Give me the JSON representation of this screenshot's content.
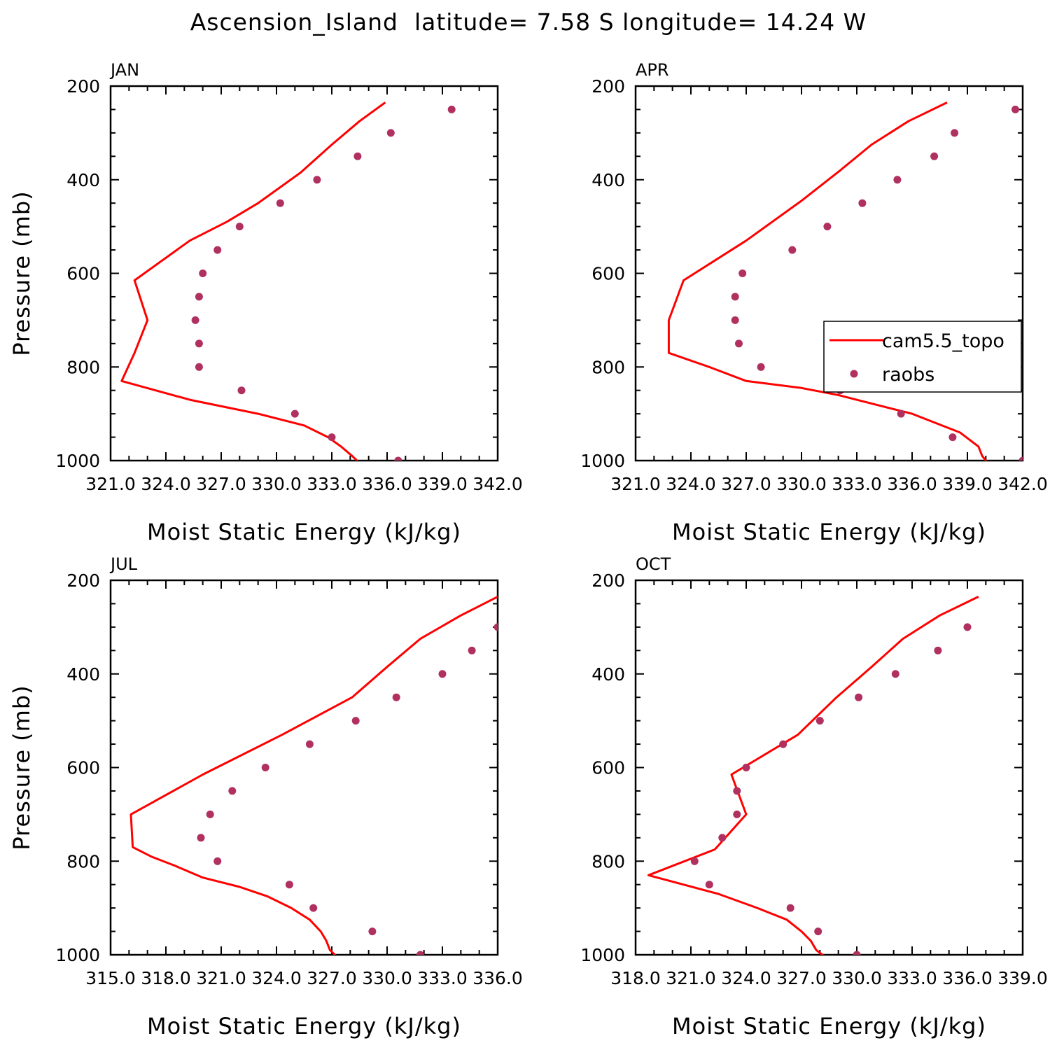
{
  "title": "Ascension_Island  latitude= 7.58 S longitude= 14.24 W",
  "colors": {
    "model": "#ff0000",
    "obs": "#b03060"
  },
  "legend": {
    "model_label": "cam5.5_topo",
    "obs_label": "raobs",
    "placement": "right-middle of APR panel"
  },
  "chart_data": [
    {
      "type": "line",
      "panel": "JAN",
      "xlabel": "Moist Static Energy (kJ/kg)",
      "ylabel": "Pressure (mb)",
      "xlim": [
        321.0,
        342.0
      ],
      "xticks": [
        "321.0",
        "324.0",
        "327.0",
        "330.0",
        "333.0",
        "336.0",
        "339.0",
        "342.0"
      ],
      "ylim": [
        1000,
        200
      ],
      "yticks": [
        "200",
        "400",
        "600",
        "800",
        "1000"
      ],
      "series": [
        {
          "name": "cam5.5_topo",
          "kind": "line",
          "points": [
            [
              335.9,
              235
            ],
            [
              334.5,
              275
            ],
            [
              333.0,
              325
            ],
            [
              331.3,
              385
            ],
            [
              329.0,
              450
            ],
            [
              327.3,
              490
            ],
            [
              325.3,
              530
            ],
            [
              322.3,
              615
            ],
            [
              323.0,
              700
            ],
            [
              322.3,
              770
            ],
            [
              321.6,
              830
            ],
            [
              325.3,
              870
            ],
            [
              329.0,
              900
            ],
            [
              331.5,
              925
            ],
            [
              332.8,
              950
            ],
            [
              333.5,
              970
            ],
            [
              334.1,
              990
            ],
            [
              334.5,
              1005
            ]
          ]
        },
        {
          "name": "raobs",
          "kind": "scatter",
          "points": [
            [
              339.5,
              250
            ],
            [
              336.2,
              300
            ],
            [
              334.4,
              350
            ],
            [
              332.2,
              400
            ],
            [
              330.2,
              450
            ],
            [
              328.0,
              500
            ],
            [
              326.8,
              550
            ],
            [
              326.0,
              600
            ],
            [
              325.8,
              650
            ],
            [
              325.6,
              700
            ],
            [
              325.8,
              750
            ],
            [
              325.8,
              800
            ],
            [
              328.1,
              850
            ],
            [
              331.0,
              900
            ],
            [
              333.0,
              950
            ],
            [
              336.6,
              1000
            ]
          ]
        }
      ]
    },
    {
      "type": "line",
      "panel": "APR",
      "xlabel": "Moist Static Energy (kJ/kg)",
      "ylabel": "",
      "xlim": [
        321.0,
        342.0
      ],
      "xticks": [
        "321.0",
        "324.0",
        "327.0",
        "330.0",
        "333.0",
        "336.0",
        "339.0",
        "342.0"
      ],
      "ylim": [
        1000,
        200
      ],
      "yticks": [
        "200",
        "400",
        "600",
        "800",
        "1000"
      ],
      "series": [
        {
          "name": "cam5.5_topo",
          "kind": "line",
          "points": [
            [
              337.9,
              235
            ],
            [
              335.8,
              275
            ],
            [
              333.8,
              325
            ],
            [
              332.1,
              380
            ],
            [
              330.0,
              445
            ],
            [
              327.0,
              530
            ],
            [
              323.6,
              615
            ],
            [
              322.8,
              700
            ],
            [
              322.8,
              770
            ],
            [
              325.0,
              800
            ],
            [
              327.0,
              830
            ],
            [
              330.0,
              845
            ],
            [
              332.0,
              860
            ],
            [
              334.0,
              880
            ],
            [
              336.0,
              900
            ],
            [
              337.3,
              920
            ],
            [
              338.6,
              940
            ],
            [
              339.6,
              970
            ],
            [
              339.8,
              990
            ],
            [
              340.1,
              1005
            ]
          ]
        },
        {
          "name": "raobs",
          "kind": "scatter",
          "points": [
            [
              341.6,
              250
            ],
            [
              338.3,
              300
            ],
            [
              337.2,
              350
            ],
            [
              335.2,
              400
            ],
            [
              333.3,
              450
            ],
            [
              331.4,
              500
            ],
            [
              329.5,
              550
            ],
            [
              326.8,
              600
            ],
            [
              326.4,
              650
            ],
            [
              326.4,
              700
            ],
            [
              326.6,
              750
            ],
            [
              327.8,
              800
            ],
            [
              332.1,
              850
            ],
            [
              335.4,
              900
            ],
            [
              338.2,
              950
            ],
            [
              342.0,
              1000
            ]
          ]
        }
      ]
    },
    {
      "type": "line",
      "panel": "JUL",
      "xlabel": "Moist Static Energy (kJ/kg)",
      "ylabel": "Pressure (mb)",
      "xlim": [
        315.0,
        336.0
      ],
      "xticks": [
        "315.0",
        "318.0",
        "321.0",
        "324.0",
        "327.0",
        "330.0",
        "333.0",
        "336.0"
      ],
      "ylim": [
        1000,
        200
      ],
      "yticks": [
        "200",
        "400",
        "600",
        "800",
        "1000"
      ],
      "series": [
        {
          "name": "cam5.5_topo",
          "kind": "line",
          "points": [
            [
              336.0,
              235
            ],
            [
              334.0,
              275
            ],
            [
              331.8,
              325
            ],
            [
              330.0,
              385
            ],
            [
              328.1,
              450
            ],
            [
              324.3,
              530
            ],
            [
              320.0,
              615
            ],
            [
              316.1,
              700
            ],
            [
              316.2,
              770
            ],
            [
              317.2,
              790
            ],
            [
              318.5,
              810
            ],
            [
              320.0,
              835
            ],
            [
              322.0,
              855
            ],
            [
              323.5,
              875
            ],
            [
              324.8,
              900
            ],
            [
              325.8,
              925
            ],
            [
              326.4,
              950
            ],
            [
              326.7,
              970
            ],
            [
              326.9,
              990
            ],
            [
              327.3,
              1005
            ]
          ]
        },
        {
          "name": "raobs",
          "kind": "scatter",
          "points": [
            [
              336.0,
              300
            ],
            [
              334.6,
              350
            ],
            [
              333.0,
              400
            ],
            [
              330.5,
              450
            ],
            [
              328.3,
              500
            ],
            [
              325.8,
              550
            ],
            [
              323.4,
              600
            ],
            [
              321.6,
              650
            ],
            [
              320.4,
              700
            ],
            [
              319.9,
              750
            ],
            [
              320.8,
              800
            ],
            [
              324.7,
              850
            ],
            [
              326.0,
              900
            ],
            [
              329.2,
              950
            ],
            [
              331.8,
              1000
            ]
          ]
        }
      ]
    },
    {
      "type": "line",
      "panel": "OCT",
      "xlabel": "Moist Static Energy (kJ/kg)",
      "ylabel": "",
      "xlim": [
        318.0,
        339.0
      ],
      "xticks": [
        "318.0",
        "321.0",
        "324.0",
        "327.0",
        "330.0",
        "333.0",
        "336.0",
        "339.0"
      ],
      "ylim": [
        1000,
        200
      ],
      "yticks": [
        "200",
        "400",
        "600",
        "800",
        "1000"
      ],
      "series": [
        {
          "name": "cam5.5_topo",
          "kind": "line",
          "points": [
            [
              336.6,
              235
            ],
            [
              334.5,
              275
            ],
            [
              332.5,
              325
            ],
            [
              330.8,
              385
            ],
            [
              328.9,
              450
            ],
            [
              326.8,
              530
            ],
            [
              323.2,
              615
            ],
            [
              324.0,
              700
            ],
            [
              322.3,
              775
            ],
            [
              318.7,
              830
            ],
            [
              322.5,
              870
            ],
            [
              324.6,
              900
            ],
            [
              326.2,
              925
            ],
            [
              327.0,
              950
            ],
            [
              327.5,
              970
            ],
            [
              327.8,
              990
            ],
            [
              328.3,
              1005
            ]
          ]
        },
        {
          "name": "raobs",
          "kind": "scatter",
          "points": [
            [
              336.0,
              300
            ],
            [
              334.4,
              350
            ],
            [
              332.1,
              400
            ],
            [
              330.1,
              450
            ],
            [
              328.0,
              500
            ],
            [
              326.0,
              550
            ],
            [
              324.0,
              600
            ],
            [
              323.5,
              650
            ],
            [
              323.5,
              700
            ],
            [
              322.7,
              750
            ],
            [
              321.2,
              800
            ],
            [
              322.0,
              850
            ],
            [
              326.4,
              900
            ],
            [
              327.9,
              950
            ],
            [
              330.0,
              1000
            ]
          ]
        }
      ]
    }
  ]
}
